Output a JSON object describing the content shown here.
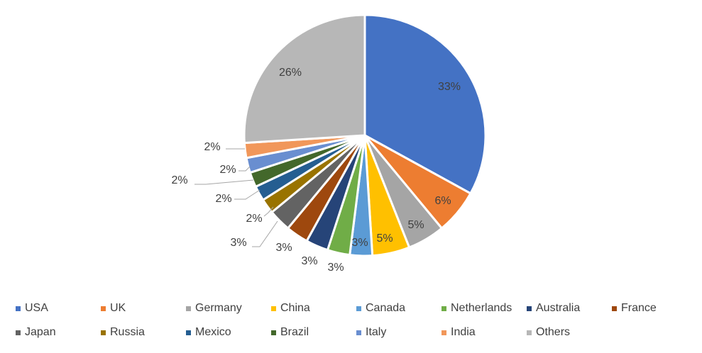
{
  "chart_data": {
    "type": "pie",
    "categories": [
      "USA",
      "UK",
      "Germany",
      "China",
      "Canada",
      "Netherlands",
      "Australia",
      "France",
      "Japan",
      "Russia",
      "Mexico",
      "Brazil",
      "Italy",
      "India",
      "Others"
    ],
    "values": [
      33,
      6,
      5,
      5,
      3,
      3,
      3,
      3,
      3,
      2,
      2,
      2,
      2,
      2,
      26
    ],
    "labels": [
      "33%",
      "6%",
      "5%",
      "5%",
      "3%",
      "3%",
      "3%",
      "3%",
      "3%",
      "2%",
      "2%",
      "2%",
      "2%",
      "2%",
      "26%"
    ],
    "colors": [
      "#4472C4",
      "#ED7D31",
      "#A5A5A5",
      "#FFC000",
      "#5B9BD5",
      "#70AD47",
      "#264478",
      "#9E480E",
      "#636363",
      "#997300",
      "#255E91",
      "#43682B",
      "#698ED0",
      "#F1975A",
      "#B7B7B7"
    ],
    "title": "",
    "legend_position": "bottom",
    "start": "12 o'clock",
    "direction": "clockwise"
  }
}
